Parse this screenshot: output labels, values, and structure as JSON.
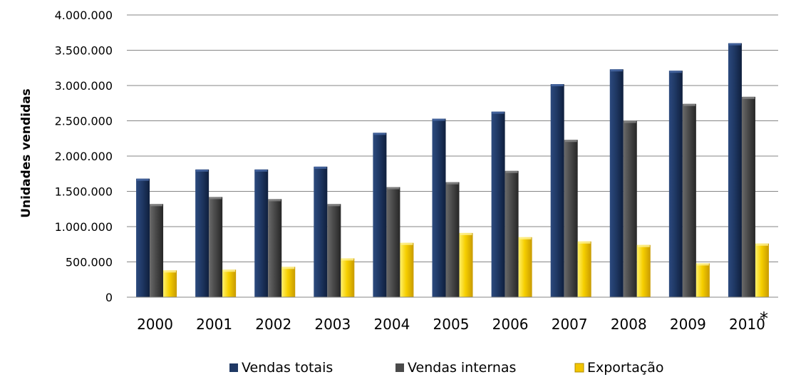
{
  "chart_data": {
    "type": "bar",
    "ylabel": "Unidades vendidas",
    "ylim": [
      0,
      4000000
    ],
    "ytick_step": 500000,
    "ytick_labels": [
      "0",
      "500.000",
      "1.000.000",
      "1.500.000",
      "2.000.000",
      "2.500.000",
      "3.000.000",
      "3.500.000",
      "4.000.000"
    ],
    "categories": [
      "2000",
      "2001",
      "2002",
      "2003",
      "2004",
      "2005",
      "2006",
      "2007",
      "2008",
      "2009",
      "2010"
    ],
    "series": [
      {
        "name": "Vendas totais",
        "color": "#1f3864",
        "values": [
          1680000,
          1810000,
          1810000,
          1850000,
          2330000,
          2530000,
          2630000,
          3020000,
          3230000,
          3210000,
          3600000
        ]
      },
      {
        "name": "Vendas internas",
        "color": "#4a4a4a",
        "values": [
          1320000,
          1420000,
          1390000,
          1320000,
          1560000,
          1630000,
          1790000,
          2230000,
          2500000,
          2740000,
          2840000
        ]
      },
      {
        "name": "Exportação",
        "color": "#f2c500",
        "values": [
          380000,
          390000,
          430000,
          550000,
          770000,
          910000,
          850000,
          790000,
          740000,
          480000,
          760000
        ]
      }
    ],
    "annotation": "*",
    "grid": true,
    "legend_position": "bottom"
  }
}
